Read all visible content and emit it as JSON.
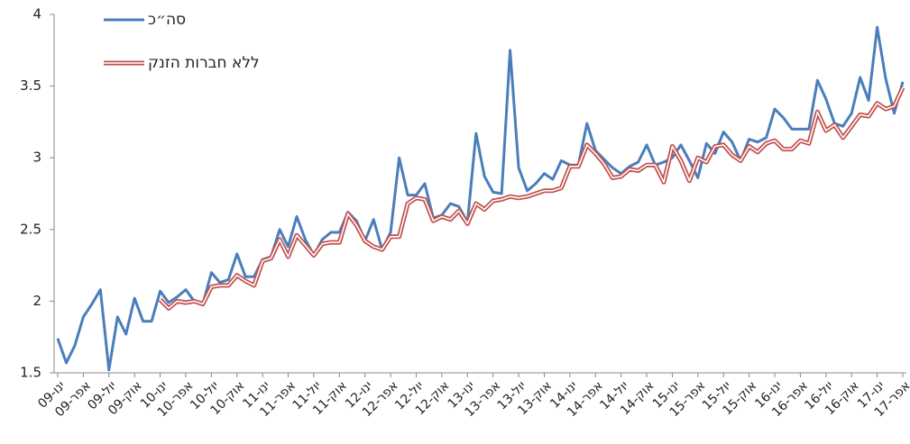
{
  "chart_data": {
    "type": "line",
    "categories": [
      "ינו-09",
      null,
      null,
      "אפר-09",
      null,
      null,
      "יול-09",
      null,
      null,
      "אוק-09",
      null,
      null,
      "ינו-10",
      null,
      null,
      "אפר-10",
      null,
      null,
      "יול-10",
      null,
      null,
      "אוק-10",
      null,
      null,
      "ינו-11",
      null,
      null,
      "אפר-11",
      null,
      null,
      "יול-11",
      null,
      null,
      "אוק-11",
      null,
      null,
      "ינו-12",
      null,
      null,
      "אפר-12",
      null,
      null,
      "יול-12",
      null,
      null,
      "אוק-12",
      null,
      null,
      "ינו-13",
      null,
      null,
      "אפר-13",
      null,
      null,
      "יול-13",
      null,
      null,
      "אוק-13",
      null,
      null,
      "ינו-14",
      null,
      null,
      "אפר-14",
      null,
      null,
      "יול-14",
      null,
      null,
      "אוק-14",
      null,
      null,
      "ינו-15",
      null,
      null,
      "אפר-15",
      null,
      null,
      "יול-15",
      null,
      null,
      "אוק-15",
      null,
      null,
      "ינו-16",
      null,
      null,
      "אפר-16",
      null,
      null,
      "יול-16",
      null,
      null,
      "אוק-16",
      null,
      null,
      "ינו-17",
      null,
      null,
      "אפר-17"
    ],
    "series": [
      {
        "name": "סה״כ",
        "color": "#4a7ebb",
        "style": "single",
        "values": [
          1.74,
          1.57,
          1.69,
          1.89,
          1.98,
          2.08,
          1.52,
          1.89,
          1.77,
          2.02,
          1.86,
          1.86,
          2.07,
          1.99,
          2.03,
          2.08,
          2.0,
          1.98,
          2.2,
          2.13,
          2.15,
          2.33,
          2.17,
          2.17,
          2.29,
          2.31,
          2.5,
          2.38,
          2.59,
          2.43,
          2.32,
          2.43,
          2.48,
          2.48,
          2.62,
          2.56,
          2.42,
          2.57,
          2.36,
          2.48,
          3.0,
          2.74,
          2.74,
          2.82,
          2.58,
          2.6,
          2.68,
          2.66,
          2.55,
          3.17,
          2.87,
          2.76,
          2.75,
          3.75,
          2.93,
          2.77,
          2.82,
          2.89,
          2.85,
          2.98,
          2.95,
          2.95,
          3.24,
          3.05,
          2.99,
          2.93,
          2.89,
          2.94,
          2.97,
          3.09,
          2.95,
          2.97,
          3.0,
          3.09,
          2.98,
          2.86,
          3.1,
          3.03,
          3.18,
          3.11,
          2.98,
          3.13,
          3.11,
          3.14,
          3.34,
          3.28,
          3.2,
          3.2,
          3.2,
          3.54,
          3.41,
          3.24,
          3.22,
          3.31,
          3.56,
          3.4,
          3.91,
          3.55,
          3.31,
          3.53
        ]
      },
      {
        "name": "ללא חברות הזנק",
        "color": "#c0504d",
        "style": "double",
        "values": [
          null,
          null,
          null,
          null,
          null,
          null,
          null,
          null,
          null,
          null,
          null,
          null,
          2.01,
          1.95,
          2.0,
          1.99,
          2.0,
          1.98,
          2.1,
          2.11,
          2.11,
          2.18,
          2.14,
          2.11,
          2.28,
          2.3,
          2.43,
          2.31,
          2.46,
          2.39,
          2.32,
          2.4,
          2.41,
          2.41,
          2.61,
          2.53,
          2.42,
          2.38,
          2.36,
          2.45,
          2.45,
          2.68,
          2.72,
          2.71,
          2.56,
          2.59,
          2.57,
          2.63,
          2.54,
          2.68,
          2.64,
          2.7,
          2.71,
          2.73,
          2.72,
          2.73,
          2.75,
          2.77,
          2.77,
          2.79,
          2.94,
          2.94,
          3.09,
          3.03,
          2.96,
          2.86,
          2.87,
          2.92,
          2.91,
          2.95,
          2.95,
          2.83,
          3.08,
          2.98,
          2.84,
          3.0,
          2.97,
          3.08,
          3.09,
          3.02,
          2.98,
          3.08,
          3.04,
          3.1,
          3.12,
          3.06,
          3.06,
          3.12,
          3.1,
          3.32,
          3.19,
          3.23,
          3.14,
          3.22,
          3.3,
          3.29,
          3.38,
          3.34,
          3.36,
          3.49
        ]
      }
    ],
    "ylim": [
      1.5,
      4
    ],
    "yticks": [
      1.5,
      2,
      2.5,
      3,
      3.5,
      4
    ],
    "grid": false,
    "legend": "upper left"
  }
}
